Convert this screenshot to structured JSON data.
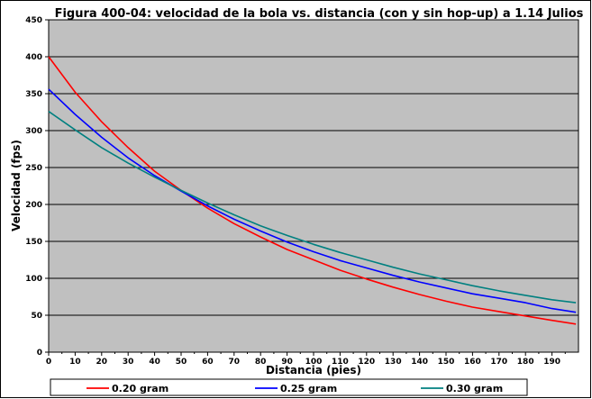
{
  "chart_data": {
    "type": "line",
    "title": "Figura 400-04: velocidad de la bola vs. distancia (con y sin hop-up) a 1.14 Julios",
    "xlabel": "Distancia (pies)",
    "ylabel": "Velocidad (fps)",
    "xlim": [
      0,
      200
    ],
    "ylim": [
      0,
      450
    ],
    "x_ticks": [
      0,
      10,
      20,
      30,
      40,
      50,
      60,
      70,
      80,
      90,
      100,
      110,
      120,
      130,
      140,
      150,
      160,
      170,
      180,
      190
    ],
    "y_ticks": [
      0,
      50,
      100,
      150,
      200,
      250,
      300,
      350,
      400,
      450
    ],
    "grid": "horizontal",
    "legend_position": "bottom",
    "plot_background": "#C0C0C0",
    "x": [
      0,
      10,
      20,
      30,
      40,
      50,
      60,
      70,
      80,
      90,
      100,
      110,
      120,
      130,
      140,
      150,
      160,
      170,
      180,
      190,
      199
    ],
    "series": [
      {
        "name": "0.20 gram",
        "color": "#FF0000",
        "values": [
          400,
          352,
          312,
          277,
          245,
          219,
          195,
          174,
          156,
          139,
          125,
          111,
          99,
          88,
          78,
          69,
          61,
          55,
          49,
          43,
          38
        ]
      },
      {
        "name": "0.25 gram",
        "color": "#0000FF",
        "values": [
          356,
          322,
          291,
          263,
          239,
          218,
          198,
          180,
          164,
          149,
          136,
          124,
          114,
          104,
          95,
          87,
          79,
          73,
          67,
          59,
          54
        ]
      },
      {
        "name": "0.30 gram",
        "color": "#008080",
        "values": [
          326,
          301,
          277,
          256,
          237,
          219,
          202,
          186,
          171,
          158,
          146,
          135,
          125,
          115,
          106,
          98,
          90,
          83,
          77,
          71,
          67
        ]
      }
    ]
  }
}
